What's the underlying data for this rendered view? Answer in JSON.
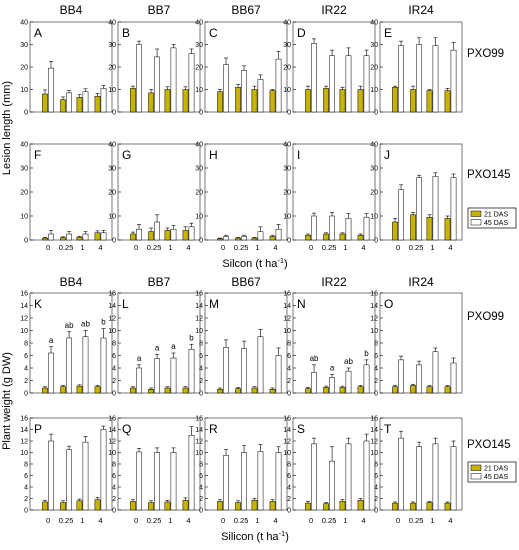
{
  "colors": {
    "das21": "#c8b400",
    "das45": "#ffffff",
    "axis": "#000000",
    "frame": "#555555"
  },
  "chart_data": [
    {
      "type": "bar",
      "section": "Lesion length",
      "ylabel": "Lesion length (mm)",
      "xlabel": "Silcon (t ha",
      "xlabel_sup": "-1",
      "xlabel_end": ")",
      "ylim": [
        0,
        40
      ],
      "yticks": [
        "0",
        "10",
        "20",
        "30",
        "40"
      ],
      "categories": [
        "0",
        "0.25",
        "1",
        "4"
      ],
      "varieties": [
        "BB4",
        "BB7",
        "BB67",
        "IR22",
        "IR24"
      ],
      "strains": [
        "PXO99",
        "PXO145"
      ],
      "legend": [
        "21 DAS",
        "45 DAS"
      ],
      "panels": [
        {
          "letter": "A",
          "d21": [
            8,
            5.5,
            6.5,
            7
          ],
          "e21": [
            1.8,
            1.2,
            1.2,
            1.3
          ],
          "d45": [
            19.5,
            8.5,
            9,
            10.5
          ],
          "e45": [
            3,
            1,
            1.3,
            1.2
          ],
          "sig": [
            "",
            "",
            "",
            ""
          ]
        },
        {
          "letter": "B",
          "d21": [
            10.5,
            8.5,
            10,
            10
          ],
          "e21": [
            1,
            1.5,
            1.2,
            1.2
          ],
          "d45": [
            30,
            24.5,
            28.5,
            26
          ],
          "e45": [
            1.5,
            3.5,
            1.5,
            2
          ],
          "sig": [
            "",
            "",
            "",
            ""
          ]
        },
        {
          "letter": "C",
          "d21": [
            9,
            11,
            10,
            9.5
          ],
          "e21": [
            1,
            1.2,
            1.5,
            0.5
          ],
          "d45": [
            21,
            18.5,
            14.5,
            23.5
          ],
          "e45": [
            3,
            2,
            2,
            3.5
          ],
          "sig": [
            "",
            "",
            "",
            ""
          ]
        },
        {
          "letter": "D",
          "d21": [
            10,
            10.5,
            10,
            10
          ],
          "e21": [
            1.5,
            1,
            1,
            1.5
          ],
          "d45": [
            30.5,
            25,
            25,
            25
          ],
          "e45": [
            2,
            2.5,
            3.5,
            2.5
          ],
          "sig": [
            "",
            "",
            "",
            ""
          ]
        },
        {
          "letter": "E",
          "d21": [
            11,
            10,
            9.5,
            9.5
          ],
          "e21": [
            0.5,
            1.5,
            0.5,
            1
          ],
          "d45": [
            29.5,
            30,
            29.5,
            27.5
          ],
          "e45": [
            2,
            3,
            3.5,
            3.5
          ],
          "sig": [
            "",
            "",
            "",
            ""
          ]
        },
        {
          "letter": "F",
          "d21": [
            0.8,
            1,
            1.2,
            3
          ],
          "e21": [
            0.3,
            0.3,
            0.3,
            0.8
          ],
          "d45": [
            2.5,
            2.5,
            2.5,
            3
          ],
          "e45": [
            1.5,
            1,
            1,
            1
          ],
          "sig": [
            "",
            "",
            "",
            ""
          ]
        },
        {
          "letter": "G",
          "d21": [
            2.5,
            3.5,
            4,
            4
          ],
          "e21": [
            0.8,
            1.5,
            1,
            1.5
          ],
          "d45": [
            4.5,
            7.5,
            4.5,
            5.5
          ],
          "e45": [
            2,
            3,
            1.5,
            1.5
          ],
          "sig": [
            "",
            "",
            "",
            ""
          ]
        },
        {
          "letter": "H",
          "d21": [
            0.5,
            0.8,
            0.8,
            1.5
          ],
          "e21": [
            0.3,
            0.3,
            0.3,
            0.5
          ],
          "d45": [
            1.5,
            1.5,
            3.5,
            4.5
          ],
          "e45": [
            0.5,
            0.5,
            2,
            2
          ],
          "sig": [
            "",
            "",
            "",
            ""
          ]
        },
        {
          "letter": "I",
          "d21": [
            2,
            2.5,
            2.5,
            2
          ],
          "e21": [
            0.5,
            0.5,
            0.5,
            0.5
          ],
          "d45": [
            10,
            10,
            9,
            9.5
          ],
          "e45": [
            1.2,
            1.5,
            2,
            1.5
          ],
          "sig": [
            "",
            "",
            "",
            ""
          ]
        },
        {
          "letter": "J",
          "d21": [
            7.5,
            10.5,
            9.5,
            9
          ],
          "e21": [
            1.5,
            1,
            1,
            1
          ],
          "d45": [
            21,
            26,
            26.5,
            26
          ],
          "e45": [
            2,
            1,
            1.5,
            1.5
          ],
          "sig": [
            "",
            "",
            "",
            ""
          ]
        }
      ]
    },
    {
      "type": "bar",
      "section": "Plant weight",
      "ylabel": "Plant weight (g DW)",
      "xlabel": "Silicon (t ha",
      "xlabel_sup": "-1",
      "xlabel_end": ")",
      "ylim": [
        0,
        16
      ],
      "yticks": [
        "0",
        "2",
        "4",
        "6",
        "8",
        "10",
        "12",
        "14",
        "16"
      ],
      "categories": [
        "0",
        "0.25",
        "1",
        "4"
      ],
      "varieties": [
        "BB4",
        "BB7",
        "BB67",
        "IR22",
        "IR24"
      ],
      "strains": [
        "PXO99",
        "PXO145"
      ],
      "legend": [
        "21 DAS",
        "45 DAS"
      ],
      "panels": [
        {
          "letter": "K",
          "d21": [
            0.8,
            1,
            1.1,
            1
          ],
          "e21": [
            0.2,
            0.2,
            0.2,
            0.2
          ],
          "d45": [
            6.4,
            8.8,
            9,
            8.8
          ],
          "e45": [
            1,
            1,
            1,
            1.5
          ],
          "sig": [
            "a",
            "ab",
            "ab",
            "b"
          ]
        },
        {
          "letter": "L",
          "d21": [
            0.8,
            0.6,
            0.8,
            0.8
          ],
          "e21": [
            0.2,
            0.2,
            0.2,
            0.2
          ],
          "d45": [
            4,
            5.5,
            5.6,
            7
          ],
          "e45": [
            0.5,
            0.7,
            0.8,
            0.8
          ],
          "sig": [
            "a",
            "a",
            "a",
            "b"
          ]
        },
        {
          "letter": "M",
          "d21": [
            0.6,
            0.7,
            0.8,
            0.6
          ],
          "e21": [
            0.2,
            0.2,
            0.2,
            0.2
          ],
          "d45": [
            7.3,
            7.1,
            9,
            6
          ],
          "e45": [
            1.2,
            1.2,
            1.2,
            1.2
          ],
          "sig": [
            "",
            "",
            "",
            ""
          ]
        },
        {
          "letter": "N",
          "d21": [
            0.7,
            0.9,
            0.9,
            1
          ],
          "e21": [
            0.2,
            0.2,
            0.2,
            0.2
          ],
          "d45": [
            3.3,
            2.5,
            3.5,
            4.5
          ],
          "e45": [
            1.2,
            0.5,
            0.5,
            0.8
          ],
          "sig": [
            "ab",
            "a",
            "ab",
            "b"
          ]
        },
        {
          "letter": "O",
          "d21": [
            1,
            1.2,
            1,
            1
          ],
          "e21": [
            0.2,
            0.2,
            0.2,
            0.2
          ],
          "d45": [
            5.3,
            4.5,
            6.6,
            4.8
          ],
          "e45": [
            0.6,
            0.6,
            0.6,
            0.8
          ],
          "sig": [
            "",
            "",
            "",
            ""
          ]
        },
        {
          "letter": "P",
          "d21": [
            1.4,
            1.3,
            1.6,
            1.8
          ],
          "e21": [
            0.3,
            0.3,
            0.3,
            0.4
          ],
          "d45": [
            12,
            10.5,
            11.8,
            14
          ],
          "e45": [
            1.2,
            0.6,
            1,
            0.6
          ],
          "sig": [
            "",
            "",
            "",
            ""
          ]
        },
        {
          "letter": "Q",
          "d21": [
            1.5,
            1.3,
            1.4,
            1.7
          ],
          "e21": [
            0.3,
            0.3,
            0.3,
            0.4
          ],
          "d45": [
            10.1,
            10,
            10,
            13
          ],
          "e45": [
            0.6,
            0.8,
            0.8,
            1.5
          ],
          "sig": [
            "",
            "",
            "",
            ""
          ]
        },
        {
          "letter": "R",
          "d21": [
            1.5,
            1.3,
            1.7,
            1.5
          ],
          "e21": [
            0.3,
            0.3,
            0.3,
            0.3
          ],
          "d45": [
            9.5,
            10,
            10.2,
            10
          ],
          "e45": [
            1,
            1.2,
            1.2,
            1
          ],
          "sig": [
            "",
            "",
            "",
            ""
          ]
        },
        {
          "letter": "S",
          "d21": [
            1.2,
            1.1,
            1.5,
            1.7
          ],
          "e21": [
            0.3,
            0.2,
            0.3,
            0.3
          ],
          "d45": [
            11.5,
            8.5,
            11.5,
            12
          ],
          "e45": [
            1,
            2.5,
            1,
            1.2
          ],
          "sig": [
            "",
            "",
            "",
            ""
          ]
        },
        {
          "letter": "T",
          "d21": [
            1.2,
            1.2,
            1.3,
            1.2
          ],
          "e21": [
            0.2,
            0.2,
            0.2,
            0.2
          ],
          "d45": [
            12.5,
            11,
            11.5,
            11
          ],
          "e45": [
            1.2,
            0.8,
            1,
            1
          ],
          "sig": [
            "",
            "",
            "",
            ""
          ]
        }
      ]
    }
  ]
}
